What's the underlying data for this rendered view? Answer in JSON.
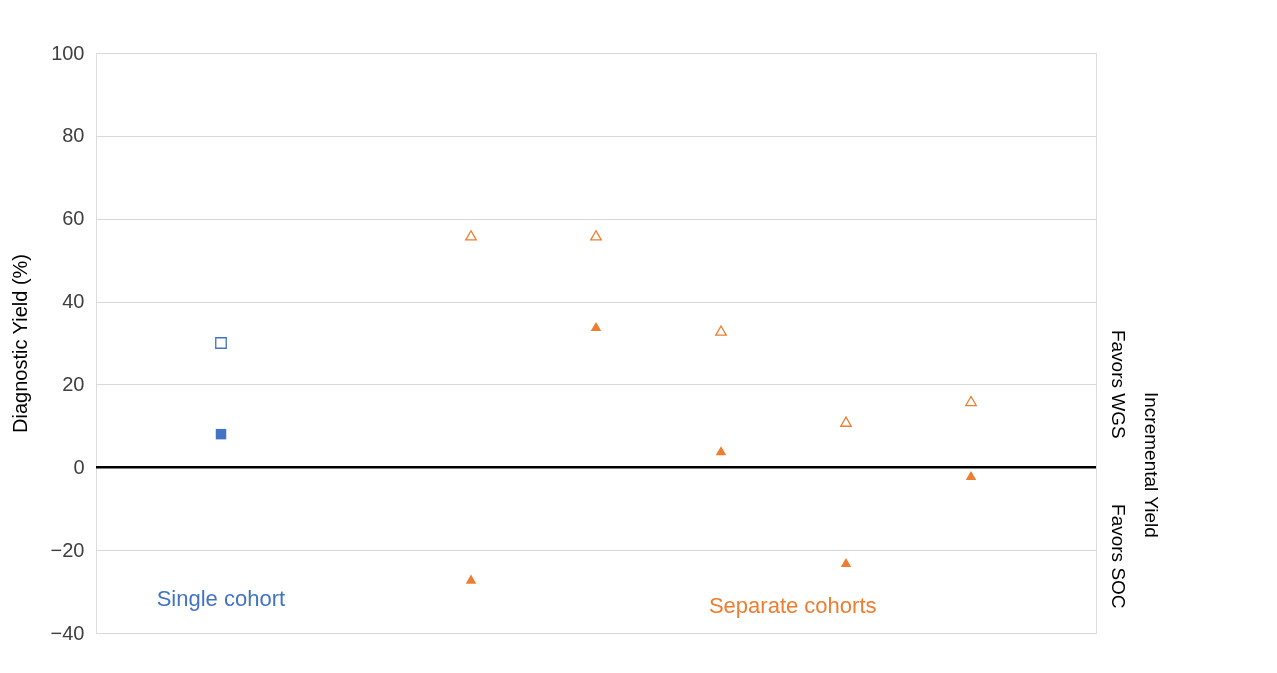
{
  "chart_data": {
    "type": "scatter",
    "ylabel": "Diagnostic Yield (%)",
    "categories": [
      null,
      null,
      null,
      null,
      null,
      null,
      null
    ],
    "series": [
      {
        "color": "#4472c4",
        "marker": "square",
        "values": [
          30,
          null,
          null,
          null,
          null,
          null,
          null
        ]
      },
      {
        "color": "#4472c4",
        "marker": "square",
        "values": [
          8,
          null,
          null,
          null,
          null,
          null,
          null
        ]
      },
      {
        "color": "#ed7d31",
        "marker": "triangle",
        "values": [
          null,
          null,
          56,
          56,
          33,
          11,
          16
        ]
      },
      {
        "color": "#ed7d31",
        "marker": "triangle",
        "values": [
          null,
          null,
          -27,
          34,
          4,
          -23,
          -2
        ]
      }
    ],
    "ylim": [
      -40,
      100
    ],
    "yticks": [
      -40,
      -20,
      0,
      20,
      40,
      60,
      80,
      100
    ],
    "grid": "y",
    "tick_labels": "y",
    "ref_lines": [
      {
        "axis": "y",
        "value": 0,
        "color": "#000000"
      }
    ],
    "annotations": [
      "Single cohort",
      "Separate cohorts",
      "Favors  WGS",
      "Favors  SOC",
      "Incremental Yield"
    ]
  }
}
